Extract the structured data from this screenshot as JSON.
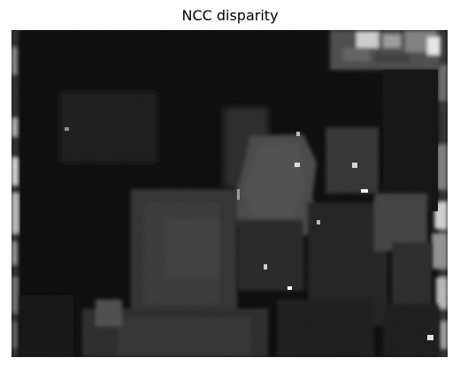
{
  "figure": {
    "title": "NCC disparity"
  },
  "image": {
    "description_icon": "disparity-map-image",
    "colormap": "grayscale"
  }
}
